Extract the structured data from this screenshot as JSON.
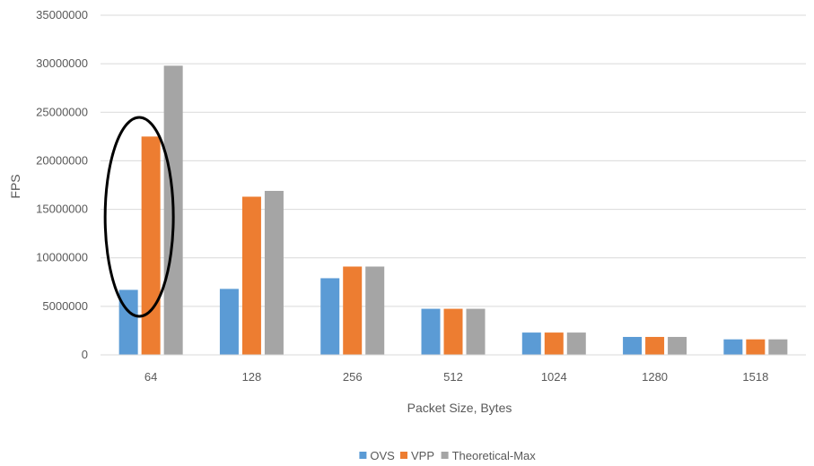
{
  "chart_data": {
    "type": "bar",
    "title": "",
    "xlabel": "Packet Size, Bytes",
    "ylabel": "FPS",
    "categories": [
      "64",
      "128",
      "256",
      "512",
      "1024",
      "1280",
      "1518"
    ],
    "ylim": [
      0,
      35000000
    ],
    "yticks": [
      0,
      5000000,
      10000000,
      15000000,
      20000000,
      25000000,
      30000000,
      35000000
    ],
    "ytick_labels": [
      "0",
      "5000000",
      "10000000",
      "15000000",
      "20000000",
      "25000000",
      "30000000",
      "35000000"
    ],
    "grid": true,
    "legend_position": "bottom",
    "series": [
      {
        "name": "OVS",
        "color": "#5B9BD5",
        "values": [
          6700000,
          6800000,
          7900000,
          4750000,
          2300000,
          1850000,
          1600000
        ]
      },
      {
        "name": "VPP",
        "color": "#ED7D31",
        "values": [
          22500000,
          16300000,
          9100000,
          4750000,
          2300000,
          1850000,
          1600000
        ]
      },
      {
        "name": "Theoretical-Max",
        "color": "#A5A5A5",
        "values": [
          29800000,
          16900000,
          9100000,
          4750000,
          2300000,
          1850000,
          1600000
        ]
      }
    ],
    "annotation": {
      "shape": "ellipse",
      "category": "64",
      "color": "#000000"
    }
  }
}
